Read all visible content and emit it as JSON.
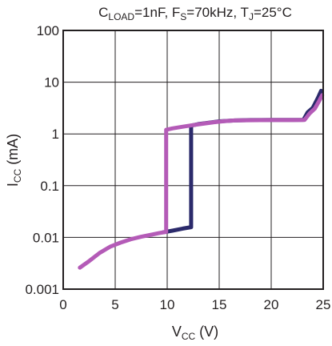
{
  "chart_data": {
    "type": "line",
    "title": {
      "parts": [
        {
          "text": "C",
          "sub": false
        },
        {
          "text": "LOAD",
          "sub": true
        },
        {
          "text": "=1nF, F",
          "sub": false
        },
        {
          "text": "S",
          "sub": true
        },
        {
          "text": "=70kHz, T",
          "sub": false
        },
        {
          "text": "J",
          "sub": true
        },
        {
          "text": "=25°C",
          "sub": false
        }
      ]
    },
    "xlabel": {
      "parts": [
        {
          "text": "V",
          "sub": false
        },
        {
          "text": "CC",
          "sub": true
        },
        {
          "text": " (V)",
          "sub": false
        }
      ]
    },
    "ylabel": {
      "parts": [
        {
          "text": "I",
          "sub": false
        },
        {
          "text": "CC",
          "sub": true
        },
        {
          "text": " (mA)",
          "sub": false
        }
      ]
    },
    "xlim": [
      0,
      25
    ],
    "ylim": [
      0.001,
      100
    ],
    "yscale": "log",
    "grid": true,
    "x_ticks": [
      {
        "value": 0,
        "label": "0"
      },
      {
        "value": 5,
        "label": "5"
      },
      {
        "value": 10,
        "label": "10"
      },
      {
        "value": 15,
        "label": "15"
      },
      {
        "value": 20,
        "label": "20"
      },
      {
        "value": 25,
        "label": "25"
      }
    ],
    "y_ticks": [
      {
        "value": 0.001,
        "label": "0.001"
      },
      {
        "value": 0.01,
        "label": "0.01"
      },
      {
        "value": 0.1,
        "label": "0.1"
      },
      {
        "value": 1,
        "label": "1"
      },
      {
        "value": 10,
        "label": "10"
      },
      {
        "value": 100,
        "label": "100"
      }
    ],
    "series": [
      {
        "color": "#2b2a6b",
        "points": [
          [
            9.6,
            0.0125
          ],
          [
            10.5,
            0.0135
          ],
          [
            11.5,
            0.0148
          ],
          [
            12.3,
            0.0158
          ],
          [
            12.3,
            0.4
          ],
          [
            12.3,
            1.45
          ],
          [
            13.0,
            1.55
          ],
          [
            14.0,
            1.65
          ],
          [
            15.0,
            1.75
          ],
          [
            16.5,
            1.82
          ],
          [
            18.0,
            1.85
          ],
          [
            20.0,
            1.86
          ],
          [
            22.0,
            1.86
          ],
          [
            23.1,
            1.87
          ],
          [
            23.5,
            2.6
          ],
          [
            24.0,
            3.2
          ],
          [
            24.5,
            5.0
          ],
          [
            24.8,
            6.8
          ]
        ]
      },
      {
        "color": "#b45bb7",
        "points": [
          [
            1.6,
            0.0026
          ],
          [
            2.5,
            0.0035
          ],
          [
            3.5,
            0.005
          ],
          [
            4.5,
            0.0066
          ],
          [
            5.5,
            0.0079
          ],
          [
            6.5,
            0.0092
          ],
          [
            7.5,
            0.0103
          ],
          [
            8.5,
            0.0113
          ],
          [
            9.2,
            0.0121
          ],
          [
            9.9,
            0.0128
          ],
          [
            9.9,
            0.2
          ],
          [
            9.9,
            1.2
          ],
          [
            10.5,
            1.28
          ],
          [
            11.5,
            1.38
          ],
          [
            12.5,
            1.48
          ],
          [
            13.5,
            1.58
          ],
          [
            14.5,
            1.68
          ],
          [
            15.5,
            1.76
          ],
          [
            16.5,
            1.82
          ],
          [
            18.0,
            1.84
          ],
          [
            20.0,
            1.85
          ],
          [
            22.0,
            1.85
          ],
          [
            23.2,
            1.86
          ],
          [
            23.7,
            2.5
          ],
          [
            24.2,
            3.1
          ],
          [
            24.6,
            4.3
          ],
          [
            24.9,
            5.6
          ]
        ]
      }
    ]
  }
}
